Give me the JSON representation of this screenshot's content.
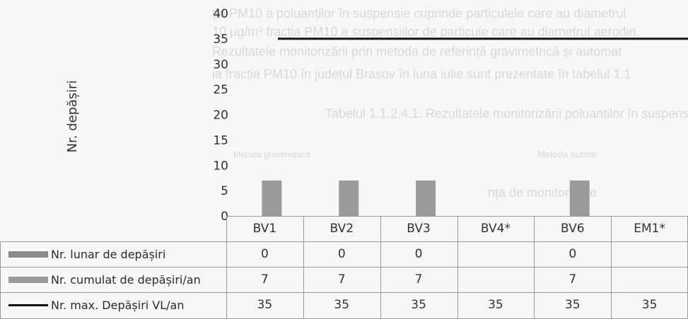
{
  "chart_data": {
    "type": "bar",
    "ylabel": "Nr. depășiri",
    "ylim": [
      0,
      40
    ],
    "yticks": [
      "0",
      "5",
      "10",
      "15",
      "20",
      "25",
      "30",
      "35",
      "40"
    ],
    "categories": [
      "BV1",
      "BV2",
      "BV3",
      "BV4*",
      "BV6",
      "EM1*"
    ],
    "series": [
      {
        "name": "Nr. lunar de depășiri",
        "type": "bar",
        "color": "#8c8c8c",
        "values": [
          0,
          0,
          0,
          null,
          0,
          null
        ]
      },
      {
        "name": "Nr. cumulat de depășiri/an",
        "type": "bar",
        "color": "#9a9a9a",
        "values": [
          7,
          7,
          7,
          null,
          7,
          null
        ]
      },
      {
        "name": "Nr. max. Depășiri VL/an",
        "type": "line",
        "color": "#111111",
        "values": [
          35,
          35,
          35,
          35,
          35,
          35
        ]
      }
    ],
    "table": {
      "rows": [
        {
          "label": "Nr. lunar de depășiri",
          "cells": [
            "0",
            "0",
            "0",
            "",
            "0",
            ""
          ]
        },
        {
          "label": "Nr. cumulat de depășiri/an",
          "cells": [
            "7",
            "7",
            "7",
            "",
            "7",
            ""
          ]
        },
        {
          "label": "Nr. max. Depășiri VL/an",
          "cells": [
            "35",
            "35",
            "35",
            "35",
            "35",
            "35"
          ]
        }
      ]
    },
    "legend": "table-left",
    "grid": false
  }
}
